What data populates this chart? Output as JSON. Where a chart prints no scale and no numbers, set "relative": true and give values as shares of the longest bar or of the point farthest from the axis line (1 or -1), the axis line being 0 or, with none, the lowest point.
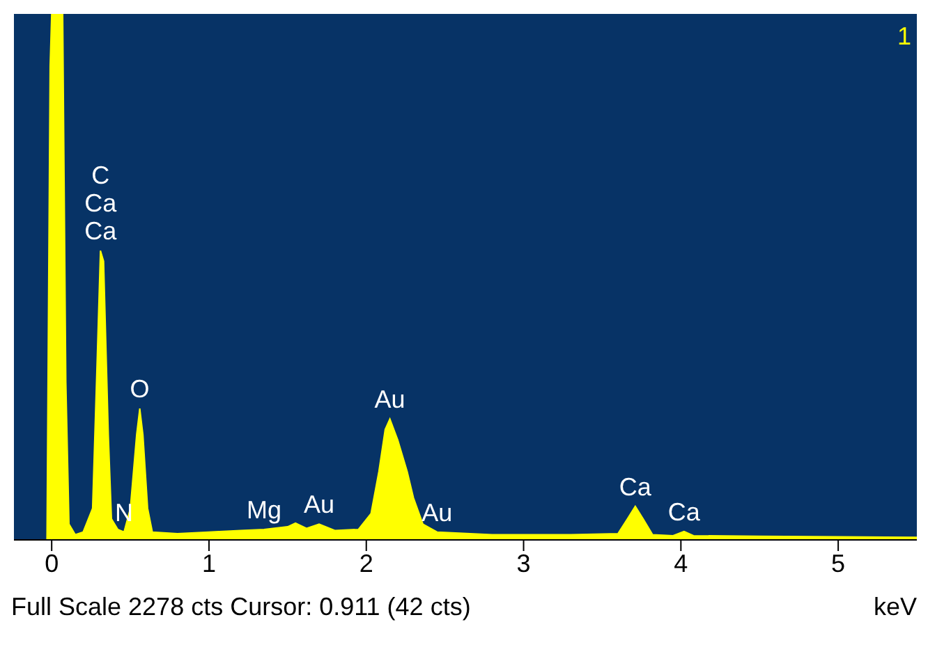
{
  "chart_data": {
    "type": "area",
    "relative": true,
    "xlabel": "keV",
    "xlim": [
      -0.24,
      5.5
    ],
    "xticks": [
      0,
      1,
      2,
      3,
      4,
      5
    ],
    "grid": false,
    "legend": false,
    "x": [
      -0.24,
      -0.05,
      -0.03,
      -0.01,
      0.0,
      0.07,
      0.09,
      0.11,
      0.15,
      0.2,
      0.26,
      0.29,
      0.31,
      0.33,
      0.36,
      0.38,
      0.42,
      0.46,
      0.5,
      0.54,
      0.56,
      0.58,
      0.61,
      0.64,
      0.8,
      1.0,
      1.2,
      1.35,
      1.5,
      1.55,
      1.62,
      1.7,
      1.8,
      1.95,
      2.03,
      2.08,
      2.12,
      2.15,
      2.2,
      2.26,
      2.3,
      2.36,
      2.45,
      2.8,
      3.3,
      3.6,
      3.66,
      3.71,
      3.76,
      3.82,
      3.95,
      4.02,
      4.08,
      4.5,
      5.0,
      5.5
    ],
    "series": [
      {
        "color": "#ffff00",
        "values": [
          0,
          0,
          0,
          0.9,
          1,
          1,
          0.3,
          0.03,
          0.01,
          0.015,
          0.06,
          0.35,
          0.55,
          0.53,
          0.2,
          0.04,
          0.02,
          0.015,
          0.06,
          0.2,
          0.25,
          0.2,
          0.06,
          0.015,
          0.012,
          0.015,
          0.018,
          0.02,
          0.025,
          0.032,
          0.022,
          0.03,
          0.018,
          0.02,
          0.05,
          0.13,
          0.21,
          0.23,
          0.19,
          0.13,
          0.08,
          0.03,
          0.015,
          0.01,
          0.01,
          0.012,
          0.04,
          0.064,
          0.04,
          0.01,
          0.008,
          0.016,
          0.008,
          0.007,
          0.006,
          0.005
        ]
      }
    ],
    "annotations": [
      {
        "text": "C",
        "x": 0.31,
        "y": 0.55
      },
      {
        "text": "Ca",
        "x": 0.31,
        "y": 0.55
      },
      {
        "text": "Ca",
        "x": 0.31,
        "y": 0.55
      },
      {
        "text": "O",
        "x": 0.56,
        "y": 0.25
      },
      {
        "text": "N",
        "x": 0.46,
        "y": 0.015
      },
      {
        "text": "Mg",
        "x": 1.35,
        "y": 0.02
      },
      {
        "text": "Au",
        "x": 1.7,
        "y": 0.03
      },
      {
        "text": "Au",
        "x": 2.15,
        "y": 0.23
      },
      {
        "text": "Au",
        "x": 2.45,
        "y": 0.015
      },
      {
        "text": "Ca",
        "x": 3.71,
        "y": 0.064
      },
      {
        "text": "Ca",
        "x": 4.02,
        "y": 0.016
      },
      "1",
      "Full Scale 2278 cts Cursor: 0.911  (42 cts)"
    ]
  }
}
